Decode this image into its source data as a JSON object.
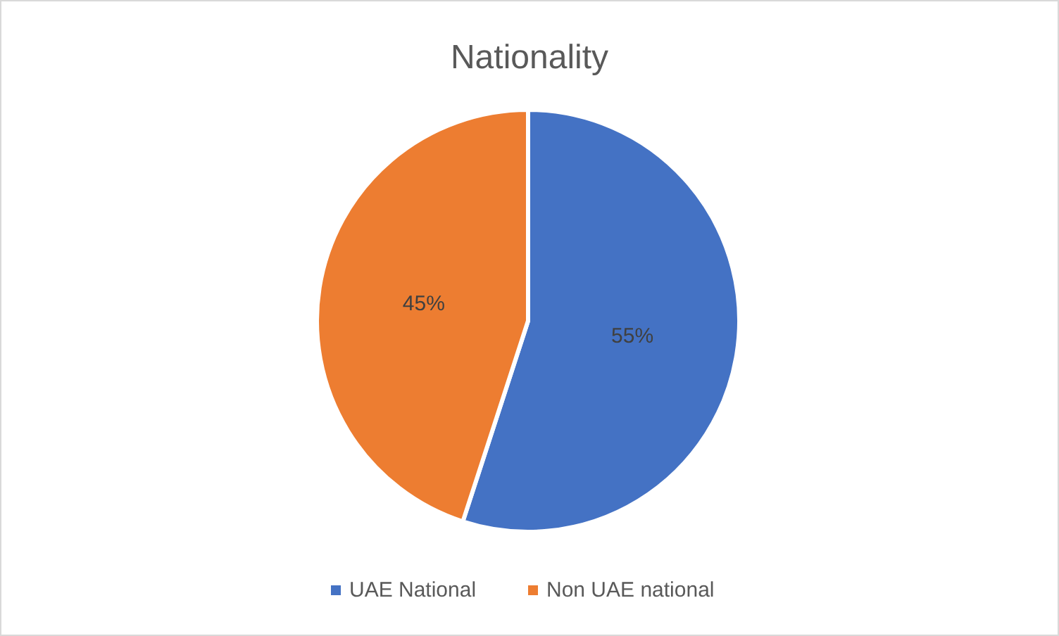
{
  "chart_data": {
    "type": "pie",
    "title": "Nationality",
    "categories": [
      "UAE National",
      "Non UAE national"
    ],
    "values": [
      55,
      45
    ],
    "colors": [
      "#4472c4",
      "#ed7d31"
    ],
    "value_labels": [
      "55%",
      "45%"
    ],
    "legend": "bottom"
  }
}
